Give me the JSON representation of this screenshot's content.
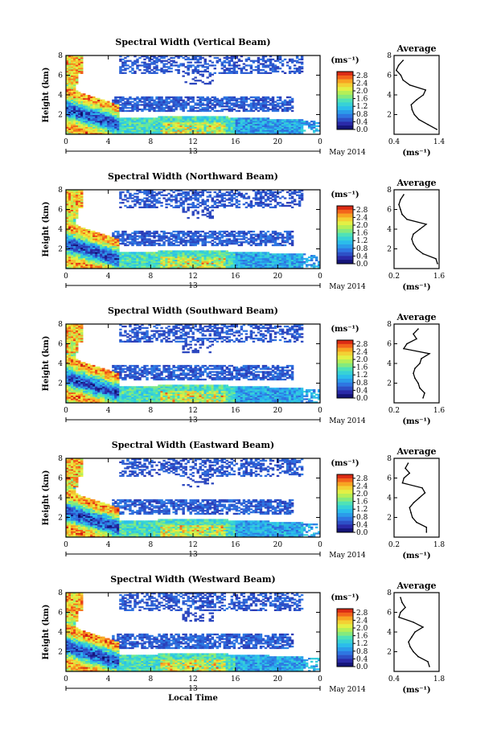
{
  "chart_data": [
    {
      "type": "heatmap",
      "title": "Spectral Width (Vertical Beam)",
      "ylabel": "Height (km)",
      "yticks": [
        "2",
        "4",
        "6",
        "8"
      ],
      "ylim": [
        0,
        8
      ],
      "xticks": [
        "0",
        "4",
        "8",
        "12",
        "16",
        "20",
        "0"
      ],
      "xlim": [
        0,
        24
      ],
      "date_label": "13",
      "month_label": "May 2014",
      "colorbar": {
        "unit": "(ms⁻¹)",
        "ticks": [
          "2.8",
          "2.4",
          "2.0",
          "1.6",
          "1.2",
          "0.8",
          "0.4",
          "0.0"
        ],
        "range": [
          0,
          3.0
        ]
      },
      "profile": {
        "title": "Average",
        "xlabel": "(ms⁻¹)",
        "xticks": [
          "0.4",
          "1.4"
        ],
        "xlim": [
          0.4,
          1.4
        ],
        "yticks": [
          "2",
          "4",
          "6",
          "8"
        ],
        "heights": [
          0.5,
          1.0,
          1.5,
          2.0,
          2.5,
          3.0,
          3.5,
          4.0,
          4.5,
          5.0,
          5.5,
          6.0,
          6.5,
          7.0,
          7.5
        ],
        "values": [
          1.35,
          1.15,
          0.95,
          0.85,
          0.8,
          0.78,
          0.9,
          1.05,
          1.1,
          0.75,
          0.6,
          0.55,
          0.45,
          0.5,
          0.6
        ]
      }
    },
    {
      "type": "heatmap",
      "title": "Spectral Width (Northward Beam)",
      "ylabel": "Height (km)",
      "yticks": [
        "2",
        "4",
        "6",
        "8"
      ],
      "ylim": [
        0,
        8
      ],
      "xticks": [
        "0",
        "4",
        "8",
        "12",
        "16",
        "20",
        "0"
      ],
      "xlim": [
        0,
        24
      ],
      "date_label": "13",
      "month_label": "May 2014",
      "colorbar": {
        "unit": "(ms⁻¹)",
        "ticks": [
          "2.8",
          "2.4",
          "2.0",
          "1.6",
          "1.2",
          "0.8",
          "0.4",
          "0.0"
        ],
        "range": [
          0,
          3.0
        ]
      },
      "profile": {
        "title": "Average",
        "xlabel": "(ms⁻¹)",
        "xticks": [
          "0.2",
          "1.6"
        ],
        "xlim": [
          0.2,
          1.6
        ],
        "yticks": [
          "2",
          "4",
          "6",
          "8"
        ],
        "heights": [
          0.5,
          1.0,
          1.5,
          2.0,
          2.5,
          3.0,
          3.5,
          4.0,
          4.5,
          5.0,
          5.5,
          6.0,
          6.5,
          7.0,
          7.5
        ],
        "values": [
          1.55,
          1.5,
          1.1,
          0.9,
          0.8,
          0.75,
          0.8,
          1.0,
          1.2,
          0.6,
          0.45,
          0.4,
          0.35,
          0.4,
          0.5
        ]
      }
    },
    {
      "type": "heatmap",
      "title": "Spectral Width (Southward Beam)",
      "ylabel": "Height (km)",
      "yticks": [
        "2",
        "4",
        "6",
        "8"
      ],
      "ylim": [
        0,
        8
      ],
      "xticks": [
        "0",
        "4",
        "8",
        "12",
        "16",
        "20",
        "0"
      ],
      "xlim": [
        0,
        24
      ],
      "date_label": "13",
      "month_label": "May 2014",
      "colorbar": {
        "unit": "(ms⁻¹)",
        "ticks": [
          "2.8",
          "2.4",
          "2.0",
          "1.6",
          "1.2",
          "0.8",
          "0.4",
          "0.0"
        ],
        "range": [
          0,
          3.0
        ]
      },
      "profile": {
        "title": "Average",
        "xlabel": "(ms⁻¹)",
        "xticks": [
          "0.2",
          "1.6"
        ],
        "xlim": [
          0.2,
          1.6
        ],
        "yticks": [
          "2",
          "4",
          "6",
          "8"
        ],
        "heights": [
          0.5,
          1.0,
          1.5,
          2.0,
          2.5,
          3.0,
          3.5,
          4.0,
          4.5,
          5.0,
          5.5,
          6.0,
          6.5,
          7.0,
          7.5
        ],
        "values": [
          1.1,
          1.15,
          1.0,
          0.95,
          0.85,
          0.8,
          0.85,
          1.0,
          1.05,
          1.3,
          0.5,
          0.6,
          0.9,
          0.8,
          0.95
        ]
      }
    },
    {
      "type": "heatmap",
      "title": "Spectral Width (Eastward Beam)",
      "ylabel": "Height (km)",
      "yticks": [
        "2",
        "4",
        "6",
        "8"
      ],
      "ylim": [
        0,
        8
      ],
      "xticks": [
        "0",
        "4",
        "8",
        "12",
        "16",
        "20",
        "0"
      ],
      "xlim": [
        0,
        24
      ],
      "date_label": "13",
      "month_label": "May 2014",
      "colorbar": {
        "unit": "(ms⁻¹)",
        "ticks": [
          "2.8",
          "2.4",
          "2.0",
          "1.6",
          "1.2",
          "0.8",
          "0.4",
          "0.0"
        ],
        "range": [
          0,
          3.0
        ]
      },
      "profile": {
        "title": "Average",
        "xlabel": "(ms⁻¹)",
        "xticks": [
          "0.2",
          "1.8"
        ],
        "xlim": [
          0.2,
          1.8
        ],
        "yticks": [
          "2",
          "4",
          "6",
          "8"
        ],
        "heights": [
          0.5,
          1.0,
          1.5,
          2.0,
          2.5,
          3.0,
          3.5,
          4.0,
          4.5,
          5.0,
          5.5,
          6.0,
          6.5,
          7.0,
          7.5
        ],
        "values": [
          1.35,
          1.35,
          1.0,
          0.85,
          0.8,
          0.75,
          0.9,
          1.1,
          1.3,
          1.2,
          0.5,
          0.55,
          0.75,
          0.6,
          0.7
        ]
      }
    },
    {
      "type": "heatmap",
      "title": "Spectral Width (Westward Beam)",
      "ylabel": "Height (km)",
      "yticks": [
        "2",
        "4",
        "6",
        "8"
      ],
      "ylim": [
        0,
        8
      ],
      "xticks": [
        "0",
        "4",
        "8",
        "12",
        "16",
        "20",
        "0"
      ],
      "xlim": [
        0,
        24
      ],
      "date_label": "13",
      "month_label": "May 2014",
      "xlabel": "Local Time",
      "colorbar": {
        "unit": "(ms⁻¹)",
        "ticks": [
          "2.8",
          "2.4",
          "2.0",
          "1.6",
          "1.2",
          "0.8",
          "0.4",
          "0.0"
        ],
        "range": [
          0,
          3.0
        ]
      },
      "profile": {
        "title": "Average",
        "xlabel": "(ms⁻¹)",
        "xticks": [
          "0.4",
          "1.8"
        ],
        "xlim": [
          0.4,
          1.8
        ],
        "yticks": [
          "2",
          "4",
          "6",
          "8"
        ],
        "heights": [
          0.5,
          1.0,
          1.5,
          2.0,
          2.5,
          3.0,
          3.5,
          4.0,
          4.5,
          5.0,
          5.5,
          6.0,
          6.5,
          7.0,
          7.5
        ],
        "values": [
          1.5,
          1.45,
          1.15,
          1.0,
          0.9,
          0.85,
          0.95,
          1.05,
          1.3,
          1.0,
          0.55,
          0.6,
          0.75,
          0.65,
          0.6
        ]
      }
    }
  ]
}
